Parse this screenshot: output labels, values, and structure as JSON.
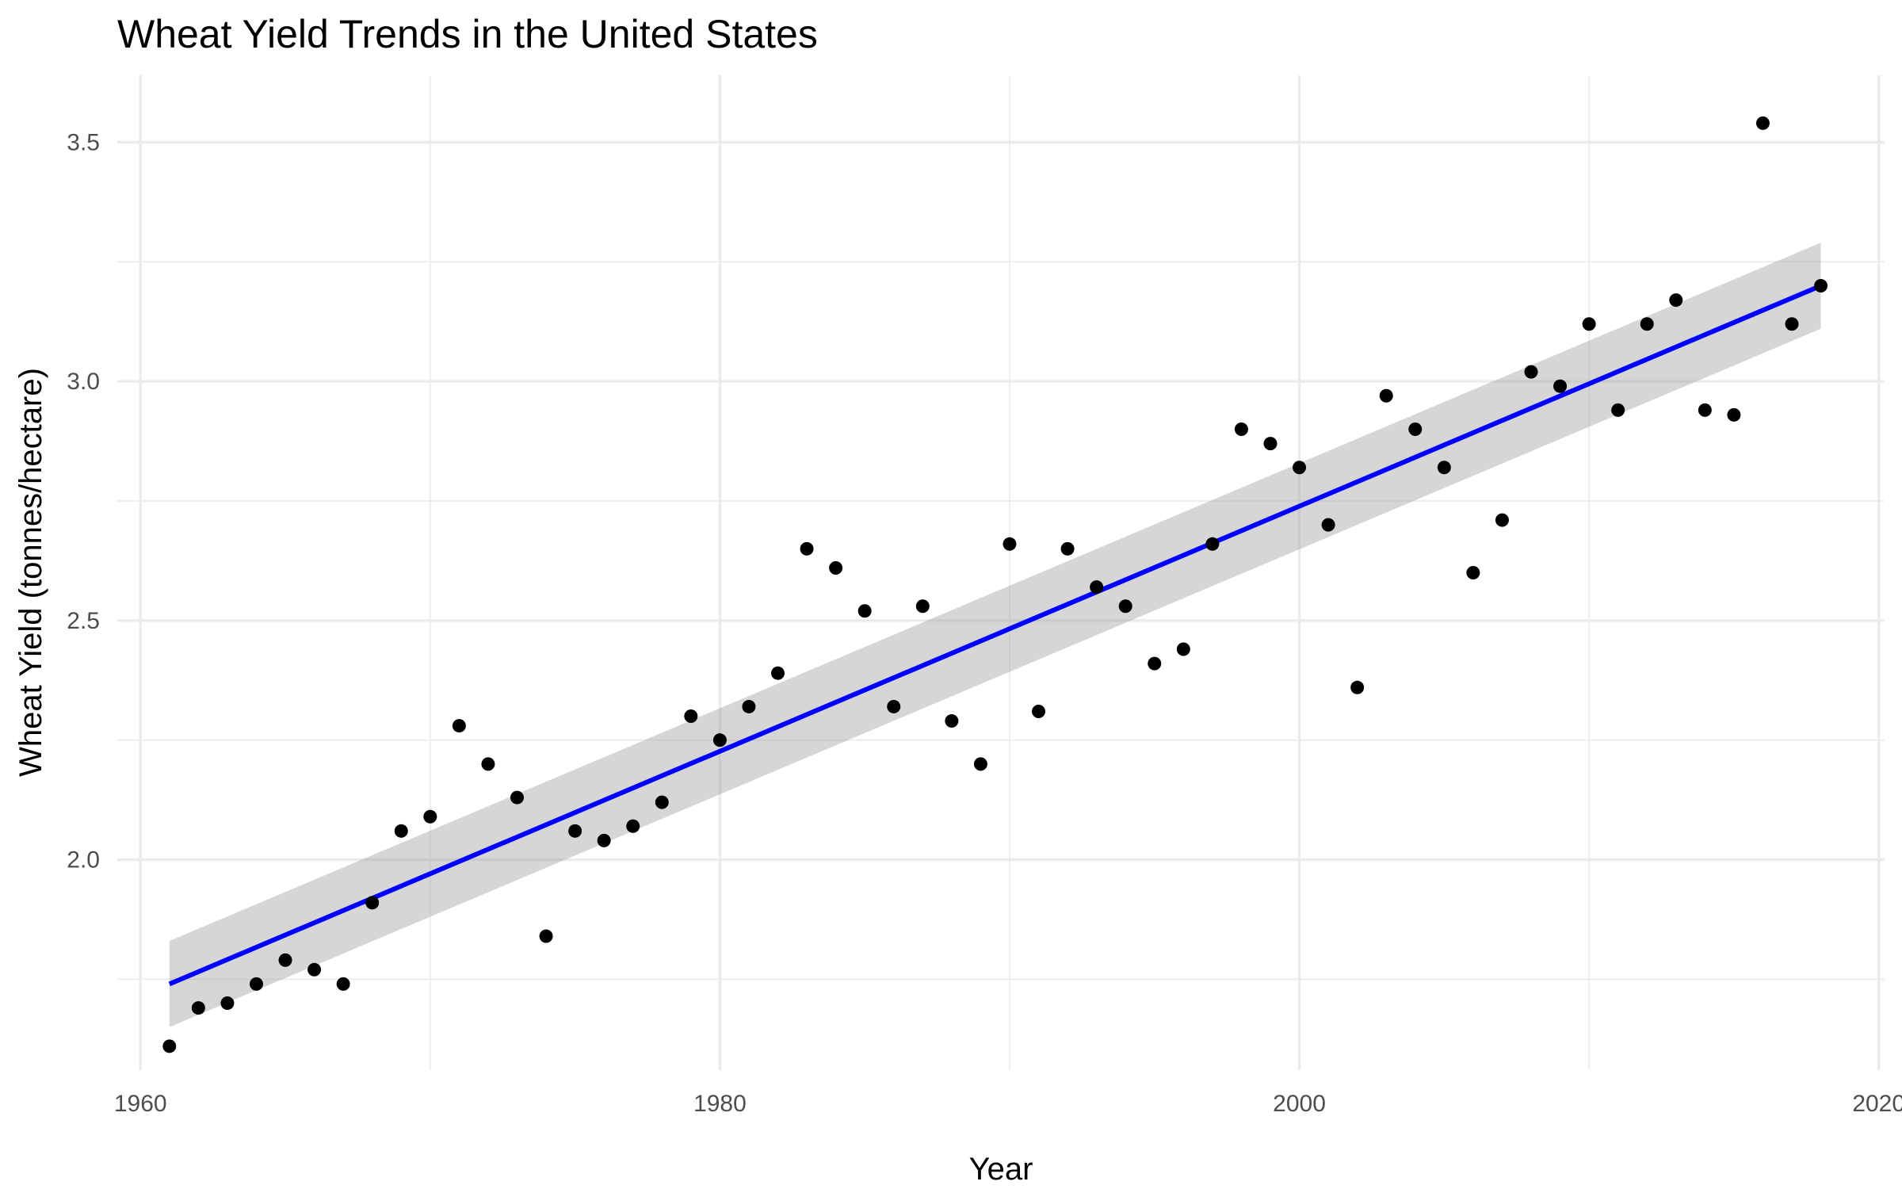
{
  "chart_data": {
    "type": "scatter",
    "title": "Wheat Yield Trends in the United States",
    "xlabel": "Year",
    "ylabel": "Wheat Yield (tonnes/hectare)",
    "xlim": [
      1959.2,
      2020.2
    ],
    "ylim": [
      1.56,
      3.64
    ],
    "x_ticks": [
      1960,
      1980,
      2000,
      2020
    ],
    "x_tick_labels": [
      "1960",
      "1980",
      "2000",
      "2020"
    ],
    "x_minor_ticks": [
      1970,
      1990,
      2010
    ],
    "y_ticks": [
      2.0,
      2.5,
      3.0,
      3.5
    ],
    "y_tick_labels": [
      "2.0",
      "2.5",
      "3.0",
      "3.5"
    ],
    "y_minor_ticks": [
      1.75,
      2.25,
      2.75,
      3.25
    ],
    "grid": true,
    "legend": "none",
    "series": [
      {
        "type": "scatter",
        "color": "#000000",
        "x": [
          1961,
          1962,
          1963,
          1964,
          1965,
          1966,
          1967,
          1968,
          1969,
          1970,
          1971,
          1972,
          1973,
          1974,
          1975,
          1976,
          1977,
          1978,
          1979,
          1980,
          1981,
          1982,
          1983,
          1984,
          1985,
          1986,
          1987,
          1988,
          1989,
          1990,
          1991,
          1992,
          1993,
          1994,
          1995,
          1996,
          1997,
          1998,
          1999,
          2000,
          2001,
          2002,
          2003,
          2004,
          2005,
          2006,
          2007,
          2008,
          2009,
          2010,
          2011,
          2012,
          2013,
          2014,
          2015,
          2016,
          2017,
          2018
        ],
        "y": [
          1.61,
          1.69,
          1.7,
          1.74,
          1.79,
          1.77,
          1.74,
          1.91,
          2.06,
          2.09,
          2.28,
          2.2,
          2.13,
          1.84,
          2.06,
          2.04,
          2.07,
          2.12,
          2.3,
          2.25,
          2.32,
          2.39,
          2.65,
          2.61,
          2.52,
          2.32,
          2.53,
          2.29,
          2.2,
          2.66,
          2.31,
          2.65,
          2.57,
          2.53,
          2.41,
          2.44,
          2.66,
          2.9,
          2.87,
          2.82,
          2.7,
          2.36,
          2.97,
          2.9,
          2.82,
          2.6,
          2.71,
          3.02,
          2.99,
          3.12,
          2.94,
          3.12,
          3.17,
          2.94,
          2.93,
          3.54,
          3.12,
          3.2
        ]
      },
      {
        "type": "line",
        "style": "linear trend with confidence band",
        "color": "#0000ff",
        "band_color": "#999999",
        "x": [
          1961,
          2018
        ],
        "y": [
          1.74,
          3.2
        ],
        "band_lower": [
          1.65,
          3.11
        ],
        "band_upper": [
          1.83,
          3.29
        ]
      }
    ]
  }
}
